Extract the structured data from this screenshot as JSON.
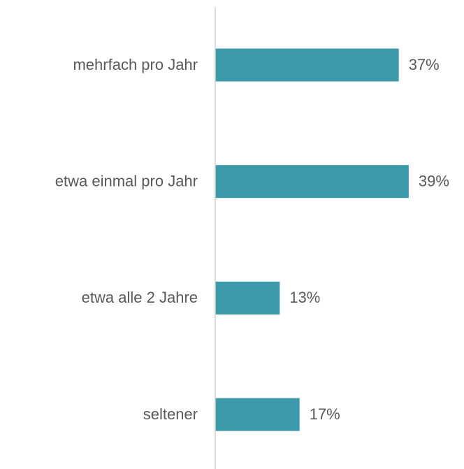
{
  "chart_data": {
    "type": "barh",
    "categories": [
      "mehrfach pro Jahr",
      "etwa einmal pro Jahr",
      "etwa alle 2 Jahre",
      "seltener"
    ],
    "values": [
      37,
      39,
      13,
      17
    ],
    "value_labels": [
      "37%",
      "39%",
      "13%",
      "17%"
    ],
    "color": "#3d9aab",
    "xlim": [
      0,
      50
    ]
  }
}
